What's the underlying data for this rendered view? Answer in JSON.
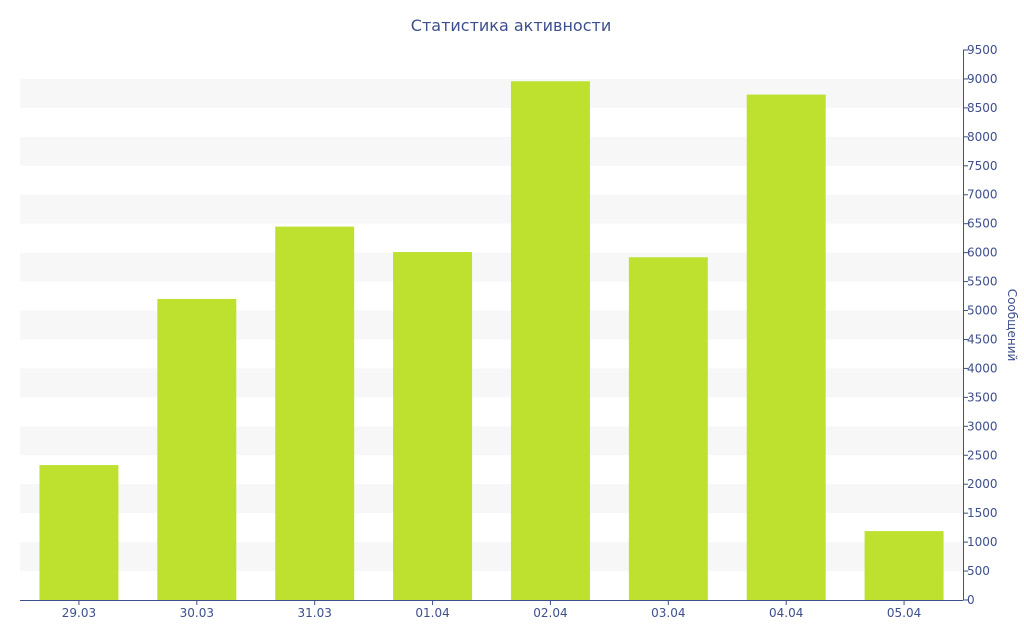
{
  "chart_data": {
    "type": "bar",
    "title": "Статистика активности",
    "xlabel": "",
    "ylabel": "Сообщений",
    "categories": [
      "29.03",
      "30.03",
      "31.03",
      "01.04",
      "02.04",
      "03.04",
      "04.04",
      "05.04"
    ],
    "values": [
      2330,
      5200,
      6450,
      6010,
      8960,
      5920,
      8730,
      1190
    ],
    "ylim": [
      0,
      9500
    ],
    "y_ticks": [
      0,
      500,
      1000,
      1500,
      2000,
      2500,
      3000,
      3500,
      4000,
      4500,
      5000,
      5500,
      6000,
      6500,
      7000,
      7500,
      8000,
      8500,
      9000,
      9500
    ],
    "y_axis_side": "right",
    "grid": "alternating horizontal bands",
    "legend": "none",
    "colors": {
      "bar": "#bde12e",
      "text": "#3e4f8c",
      "axis": "#3e4f8c",
      "band": "#f7f7f7"
    }
  }
}
